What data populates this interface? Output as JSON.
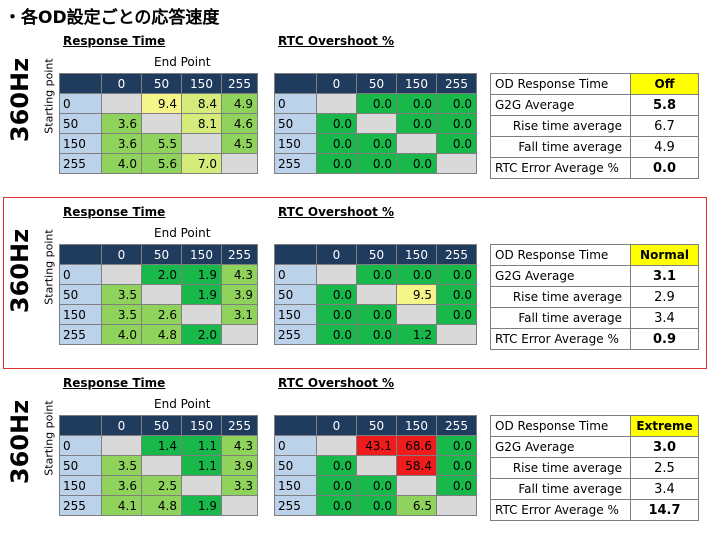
{
  "page_title": "・各OD設定ごとの応答速度",
  "colors": {
    "header_bg": "#1f3b5e",
    "row_header_bg": "#bcd2ea",
    "green": "#19b84a",
    "light_green": "#8fd35c",
    "yellow_green": "#d6ec7a",
    "yellow": "#f5f58a",
    "red": "#ee1c1c",
    "gray": "#d9d9d9",
    "mode_highlight": "#ffff00",
    "selected_frame": "#e03030"
  },
  "chart_data": [
    {
      "type": "table",
      "refresh_label": "360Hz",
      "starting_point_label": "Starting point",
      "response_title": "Response Time",
      "rtc_title": "RTC Overshoot %",
      "end_point_label": "End Point",
      "columns": [
        "0",
        "50",
        "150",
        "255"
      ],
      "rows": [
        "0",
        "50",
        "150",
        "255"
      ],
      "response_values": [
        [
          "",
          "9.4",
          "8.4",
          "4.9"
        ],
        [
          "3.6",
          "",
          "8.1",
          "4.6"
        ],
        [
          "3.6",
          "5.5",
          "",
          "4.5"
        ],
        [
          "4.0",
          "5.6",
          "7.0",
          ""
        ]
      ],
      "response_colors": [
        [
          "gray",
          "yellow",
          "yellow_green",
          "light_green"
        ],
        [
          "light_green",
          "gray",
          "yellow_green",
          "light_green"
        ],
        [
          "light_green",
          "light_green",
          "gray",
          "light_green"
        ],
        [
          "light_green",
          "light_green",
          "yellow_green",
          "gray"
        ]
      ],
      "rtc_values": [
        [
          "",
          "0.0",
          "0.0",
          "0.0"
        ],
        [
          "0.0",
          "",
          "0.0",
          "0.0"
        ],
        [
          "0.0",
          "0.0",
          "",
          "0.0"
        ],
        [
          "0.0",
          "0.0",
          "0.0",
          ""
        ]
      ],
      "rtc_colors": [
        [
          "gray",
          "green",
          "green",
          "green"
        ],
        [
          "green",
          "gray",
          "green",
          "green"
        ],
        [
          "green",
          "green",
          "gray",
          "green"
        ],
        [
          "green",
          "green",
          "green",
          "gray"
        ]
      ],
      "summary": {
        "mode_label": "OD Response Time",
        "mode": "Off",
        "g2g_label": "G2G Average",
        "g2g": "5.8",
        "rise_label": "Rise time average",
        "rise": "6.7",
        "fall_label": "Fall time average",
        "fall": "4.9",
        "rtc_err_label": "RTC Error Average %",
        "rtc_err": "0.0"
      }
    },
    {
      "type": "table",
      "refresh_label": "360Hz",
      "starting_point_label": "Starting point",
      "response_title": "Response Time",
      "rtc_title": "RTC Overshoot %",
      "end_point_label": "End Point",
      "columns": [
        "0",
        "50",
        "150",
        "255"
      ],
      "rows": [
        "0",
        "50",
        "150",
        "255"
      ],
      "response_values": [
        [
          "",
          "2.0",
          "1.9",
          "4.3"
        ],
        [
          "3.5",
          "",
          "1.9",
          "3.9"
        ],
        [
          "3.5",
          "2.6",
          "",
          "3.1"
        ],
        [
          "4.0",
          "4.8",
          "2.0",
          ""
        ]
      ],
      "response_colors": [
        [
          "gray",
          "green",
          "green",
          "light_green"
        ],
        [
          "light_green",
          "gray",
          "green",
          "light_green"
        ],
        [
          "light_green",
          "light_green",
          "gray",
          "light_green"
        ],
        [
          "light_green",
          "light_green",
          "green",
          "gray"
        ]
      ],
      "rtc_values": [
        [
          "",
          "0.0",
          "0.0",
          "0.0"
        ],
        [
          "0.0",
          "",
          "9.5",
          "0.0"
        ],
        [
          "0.0",
          "0.0",
          "",
          "0.0"
        ],
        [
          "0.0",
          "0.0",
          "1.2",
          ""
        ]
      ],
      "rtc_colors": [
        [
          "gray",
          "green",
          "green",
          "green"
        ],
        [
          "green",
          "gray",
          "yellow",
          "green"
        ],
        [
          "green",
          "green",
          "gray",
          "green"
        ],
        [
          "green",
          "green",
          "green",
          "gray"
        ]
      ],
      "summary": {
        "mode_label": "OD Response Time",
        "mode": "Normal",
        "g2g_label": "G2G Average",
        "g2g": "3.1",
        "rise_label": "Rise time average",
        "rise": "2.9",
        "fall_label": "Fall time average",
        "fall": "3.4",
        "rtc_err_label": "RTC Error Average %",
        "rtc_err": "0.9"
      }
    },
    {
      "type": "table",
      "refresh_label": "360Hz",
      "starting_point_label": "Starting point",
      "response_title": "Response Time",
      "rtc_title": "RTC Overshoot %",
      "end_point_label": "End Point",
      "columns": [
        "0",
        "50",
        "150",
        "255"
      ],
      "rows": [
        "0",
        "50",
        "150",
        "255"
      ],
      "response_values": [
        [
          "",
          "1.4",
          "1.1",
          "4.3"
        ],
        [
          "3.5",
          "",
          "1.1",
          "3.9"
        ],
        [
          "3.6",
          "2.5",
          "",
          "3.3"
        ],
        [
          "4.1",
          "4.8",
          "1.9",
          ""
        ]
      ],
      "response_colors": [
        [
          "gray",
          "green",
          "green",
          "light_green"
        ],
        [
          "light_green",
          "gray",
          "green",
          "light_green"
        ],
        [
          "light_green",
          "light_green",
          "gray",
          "light_green"
        ],
        [
          "light_green",
          "light_green",
          "green",
          "gray"
        ]
      ],
      "rtc_values": [
        [
          "",
          "43.1",
          "68.6",
          "0.0"
        ],
        [
          "0.0",
          "",
          "58.4",
          "0.0"
        ],
        [
          "0.0",
          "0.0",
          "",
          "0.0"
        ],
        [
          "0.0",
          "0.0",
          "6.5",
          ""
        ]
      ],
      "rtc_colors": [
        [
          "gray",
          "red",
          "red",
          "green"
        ],
        [
          "green",
          "gray",
          "red",
          "green"
        ],
        [
          "green",
          "green",
          "gray",
          "green"
        ],
        [
          "green",
          "green",
          "light_green",
          "gray"
        ]
      ],
      "summary": {
        "mode_label": "OD Response Time",
        "mode": "Extreme",
        "g2g_label": "G2G Average",
        "g2g": "3.0",
        "rise_label": "Rise time average",
        "rise": "2.5",
        "fall_label": "Fall time average",
        "fall": "3.4",
        "rtc_err_label": "RTC Error Average %",
        "rtc_err": "14.7"
      }
    }
  ]
}
